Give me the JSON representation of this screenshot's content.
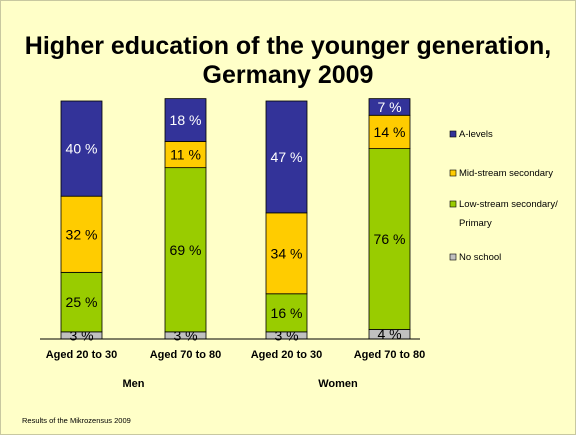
{
  "title_line1": "Higher education of the younger generation,",
  "title_line2": "Germany 2009",
  "source_note": "Results of the  Mikrozensus 2009",
  "chart_data": {
    "type": "bar",
    "stacked": true,
    "normalized": true,
    "categories": [
      "Aged 20 to 30",
      "Aged 70 to 80",
      "Aged 20 to 30",
      "Aged 70 to 80"
    ],
    "groups": [
      {
        "label": "Men",
        "categories": [
          0,
          1
        ]
      },
      {
        "label": "Women",
        "categories": [
          2,
          3
        ]
      }
    ],
    "series": [
      {
        "name": "No school",
        "color": "#c0c0c0",
        "values": [
          3,
          3,
          3,
          4
        ],
        "labels": [
          "3 %",
          "3 %",
          "3 %",
          "4 %"
        ]
      },
      {
        "name": "Low-stream secondary/ Primary",
        "color": "#99cc00",
        "values": [
          25,
          69,
          16,
          76
        ],
        "labels": [
          "25 %",
          "69 %",
          "16 %",
          "76 %"
        ]
      },
      {
        "name": "Mid-stream secondary",
        "color": "#ffcc00",
        "values": [
          32,
          11,
          34,
          14
        ],
        "labels": [
          "32 %",
          "11 %",
          "34 %",
          "14 %"
        ]
      },
      {
        "name": "A-levels",
        "color": "#333399",
        "values": [
          40,
          18,
          47,
          7
        ],
        "labels": [
          "40 %",
          "18 %",
          "47 %",
          "7 %"
        ]
      }
    ],
    "legend": {
      "position": "right",
      "order": [
        "A-levels",
        "Mid-stream secondary",
        "Low-stream secondary/ Primary",
        "No school"
      ],
      "entries": [
        {
          "lines": [
            "A-levels"
          ],
          "color": "#333399"
        },
        {
          "lines": [
            "Mid-stream secondary"
          ],
          "color": "#ffcc00"
        },
        {
          "lines": [
            "Low-stream secondary/",
            "Primary"
          ],
          "color": "#99cc00"
        },
        {
          "lines": [
            "No school"
          ],
          "color": "#c0c0c0"
        }
      ]
    },
    "ylim": [
      0,
      100
    ],
    "grid": false
  }
}
